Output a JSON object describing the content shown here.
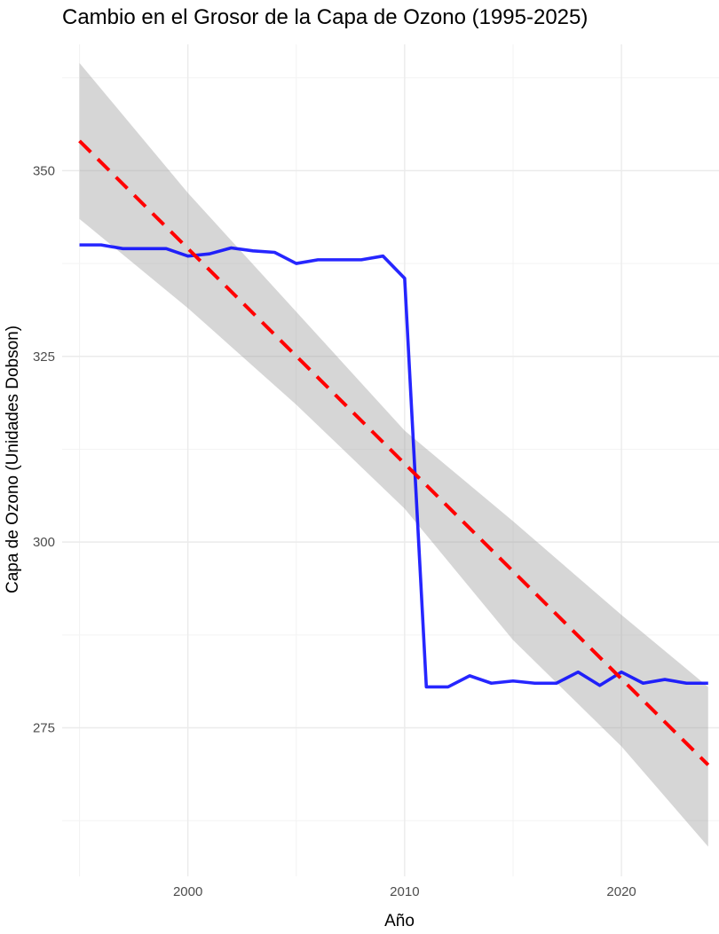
{
  "chart_data": {
    "type": "line",
    "title": "Cambio en el Grosor de la Capa de Ozono (1995-2025)",
    "xlabel": "Año",
    "ylabel": "Capa de Ozono (Unidades Dobson)",
    "xlim": [
      1994.2,
      2024.5
    ],
    "ylim": [
      255,
      367
    ],
    "x_ticks": [
      2000,
      2010,
      2020
    ],
    "x_minor_ticks": [
      1995,
      2005,
      2015
    ],
    "y_ticks": [
      275,
      300,
      325,
      350
    ],
    "y_minor_ticks": [
      262.5,
      287.5,
      312.5,
      337.5,
      362.5
    ],
    "grid": true,
    "series": [
      {
        "kind": "line",
        "color": "#0000ff",
        "x": [
          1995,
          1996,
          1997,
          1998,
          1999,
          2000,
          2001,
          2002,
          2003,
          2004,
          2005,
          2006,
          2007,
          2008,
          2009,
          2010,
          2011,
          2012,
          2013,
          2014,
          2015,
          2016,
          2017,
          2018,
          2019,
          2020,
          2021,
          2022,
          2023,
          2024
        ],
        "y": [
          340,
          340,
          339.5,
          339.5,
          339.5,
          338.5,
          338.8,
          339.6,
          339.2,
          339,
          337.5,
          338,
          338,
          338,
          338.5,
          335.5,
          280.5,
          280.5,
          282,
          281,
          281.3,
          281,
          281,
          282.5,
          280.7,
          282.5,
          281,
          281.5,
          281,
          281
        ]
      },
      {
        "kind": "trend",
        "color": "#ff0000",
        "x": [
          1995,
          2024
        ],
        "y": [
          354,
          270
        ]
      },
      {
        "kind": "confidence-band",
        "color": "#999999",
        "x": [
          1995,
          2000,
          2005,
          2010,
          2015,
          2020,
          2024
        ],
        "upper": [
          364.5,
          347,
          331,
          315,
          302.8,
          290.2,
          280.5
        ],
        "lower": [
          343.5,
          331.5,
          318.5,
          304.5,
          286.8,
          272.5,
          259
        ]
      }
    ]
  }
}
